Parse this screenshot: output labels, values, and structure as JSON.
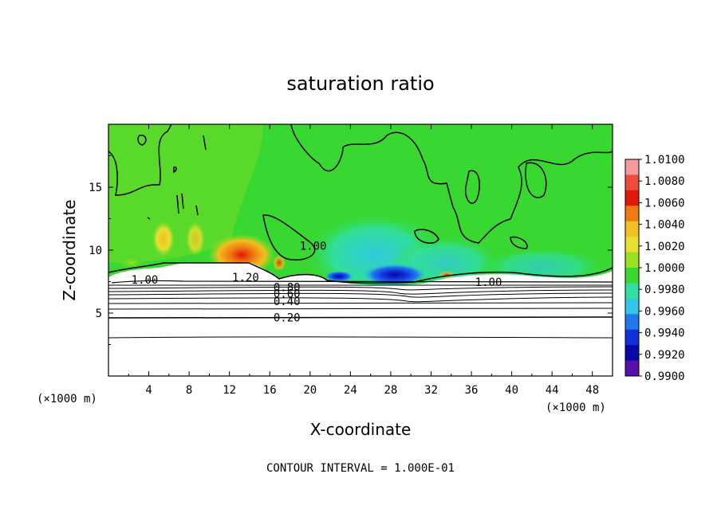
{
  "chart_data": {
    "type": "heatmap",
    "title": "saturation ratio",
    "xlabel": "X-coordinate",
    "ylabel": "Z-coordinate",
    "x_unit": "(×1000 m)",
    "y_unit": "(×1000 m)",
    "xlim": [
      0,
      50
    ],
    "ylim": [
      0,
      20
    ],
    "x_ticks": [
      4,
      8,
      12,
      16,
      20,
      24,
      28,
      32,
      36,
      40,
      44,
      48
    ],
    "y_ticks": [
      5,
      10,
      15
    ],
    "footer": "CONTOUR INTERVAL = 1.000E-01",
    "contour_labels": [
      {
        "text": "1.00",
        "x": 3.6,
        "z": 7.6
      },
      {
        "text": "1.20",
        "x": 13.6,
        "z": 7.8
      },
      {
        "text": "0.80",
        "x": 17.7,
        "z": 7.0
      },
      {
        "text": "0.60",
        "x": 17.7,
        "z": 6.5
      },
      {
        "text": "0.40",
        "x": 17.7,
        "z": 5.9
      },
      {
        "text": "0.20",
        "x": 17.7,
        "z": 4.6
      },
      {
        "text": "1.00",
        "x": 20.3,
        "z": 10.3
      },
      {
        "text": "1.00",
        "x": 37.7,
        "z": 7.4
      }
    ],
    "colorbar": {
      "labels": [
        "1.0100",
        "1.0080",
        "1.0060",
        "1.0040",
        "1.0020",
        "1.0000",
        "0.9980",
        "0.9960",
        "0.9940",
        "0.9920",
        "0.9900"
      ],
      "colors": [
        "#f49a9a",
        "#f04a3a",
        "#e01808",
        "#f07a10",
        "#f0c020",
        "#e8e030",
        "#98e020",
        "#38d830",
        "#30e0a0",
        "#30c8e8",
        "#2078f0",
        "#1030d8",
        "#0808a8",
        "#5810a8"
      ]
    }
  }
}
